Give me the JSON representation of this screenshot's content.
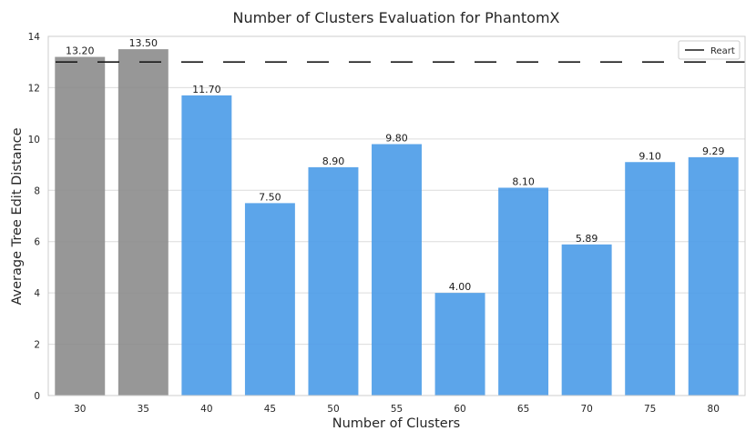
{
  "chart_data": {
    "type": "bar",
    "title": "Number of Clusters Evaluation for PhantomX",
    "xlabel": "Number of Clusters",
    "ylabel": "Average Tree Edit Distance",
    "categories": [
      "30",
      "35",
      "40",
      "45",
      "50",
      "55",
      "60",
      "65",
      "70",
      "75",
      "80"
    ],
    "values": [
      13.2,
      13.5,
      11.7,
      7.5,
      8.9,
      9.8,
      4.0,
      8.1,
      5.89,
      9.1,
      9.29
    ],
    "value_labels": [
      "13.20",
      "13.50",
      "11.70",
      "7.50",
      "8.90",
      "9.80",
      "4.00",
      "8.10",
      "5.89",
      "9.10",
      "9.29"
    ],
    "bar_colors": [
      "#8c8c8c",
      "#8c8c8c",
      "#4a9be8",
      "#4a9be8",
      "#4a9be8",
      "#4a9be8",
      "#4a9be8",
      "#4a9be8",
      "#4a9be8",
      "#4a9be8",
      "#4a9be8"
    ],
    "ylim": [
      0,
      14
    ],
    "yticks": [
      "0",
      "2",
      "4",
      "6",
      "8",
      "10",
      "12",
      "14"
    ],
    "grid": true,
    "reference_line": {
      "name": "Reart",
      "value": 13.0,
      "style": "dashed",
      "color": "#1a1a1a"
    },
    "legend": {
      "position": "top-right",
      "entries": [
        "Reart"
      ]
    }
  }
}
